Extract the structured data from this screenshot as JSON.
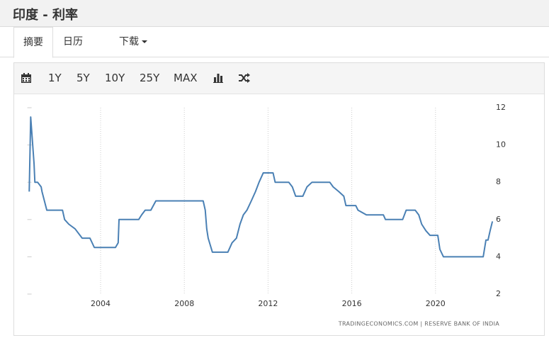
{
  "header": {
    "title": "印度 - 利率"
  },
  "tabs": [
    "摘要",
    "日历",
    "下载"
  ],
  "toolbar": [
    "1Y",
    "5Y",
    "10Y",
    "25Y",
    "MAX"
  ],
  "chart_data": {
    "type": "line",
    "source": "TRADINGECONOMICS.COM | RESERVE BANK OF INDIA",
    "x": [
      2000.59,
      2000.66,
      2000.82,
      2000.86,
      2000.99,
      2001.16,
      2001.2,
      2001.43,
      2002.18,
      2002.28,
      2002.48,
      2002.78,
      2003.12,
      2003.49,
      2003.7,
      2004.71,
      2004.84,
      2004.88,
      2005.82,
      2005.96,
      2006.13,
      2006.4,
      2006.64,
      2008.9,
      2009.0,
      2009.07,
      2009.14,
      2009.34,
      2010.08,
      2010.28,
      2010.49,
      2010.66,
      2010.82,
      2010.99,
      2011.2,
      2011.4,
      2011.57,
      2011.77,
      2012.24,
      2012.34,
      2012.99,
      2013.16,
      2013.32,
      2013.66,
      2013.86,
      2014.1,
      2014.95,
      2015.11,
      2015.38,
      2015.62,
      2015.72,
      2016.19,
      2016.3,
      2016.7,
      2017.51,
      2017.61,
      2018.43,
      2018.6,
      2019.03,
      2019.2,
      2019.34,
      2019.54,
      2019.74,
      2020.11,
      2020.21,
      2020.38,
      2022.28,
      2022.41,
      2022.51,
      2022.61,
      2022.72
    ],
    "series": [
      {
        "color": "#4a80b4",
        "values": [
          7.5,
          11.5,
          9.0,
          8.0,
          8.0,
          7.75,
          7.5,
          6.5,
          6.5,
          6.0,
          5.75,
          5.5,
          5.0,
          5.0,
          4.5,
          4.5,
          4.75,
          6.0,
          6.0,
          6.25,
          6.5,
          6.5,
          7.0,
          7.0,
          6.5,
          5.5,
          5.0,
          4.25,
          4.25,
          4.75,
          5.0,
          5.75,
          6.25,
          6.5,
          7.0,
          7.5,
          8.0,
          8.5,
          8.5,
          8.0,
          8.0,
          7.75,
          7.25,
          7.25,
          7.75,
          8.0,
          8.0,
          7.75,
          7.5,
          7.25,
          6.75,
          6.75,
          6.5,
          6.25,
          6.25,
          6.0,
          6.0,
          6.5,
          6.5,
          6.25,
          5.75,
          5.4,
          5.15,
          5.15,
          4.4,
          4.0,
          4.0,
          4.9,
          4.9,
          5.4,
          5.9
        ]
      }
    ],
    "xlim": [
      2000.5,
      2022.8
    ],
    "xticks": [
      2004,
      2008,
      2012,
      2016,
      2020
    ],
    "ylim": [
      2,
      12
    ],
    "yticks": [
      2,
      4,
      6,
      8,
      10,
      12
    ],
    "grid": true
  }
}
